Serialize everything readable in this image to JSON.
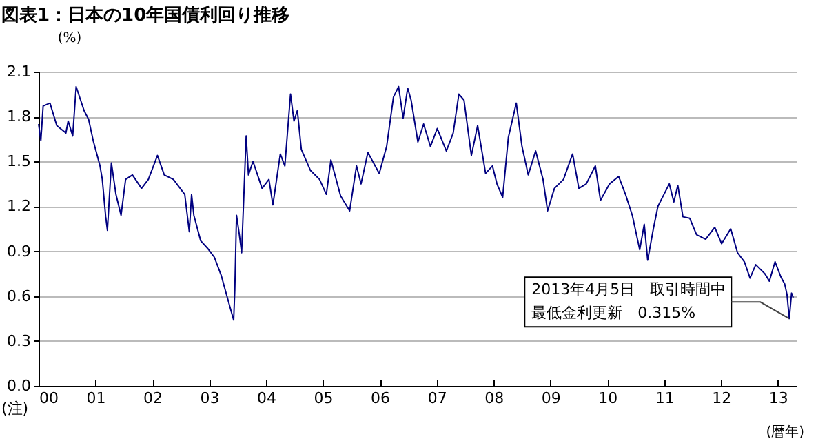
{
  "chart_data": {
    "type": "line",
    "title": "図表1：日本の10年国債利回り推移",
    "ylabel": "(%)",
    "xlabel": "(暦年)",
    "annotations": [
      {
        "text": "2013年4月5日　取引時間中最低金利更新　0.315%",
        "x": 2013.2,
        "y": 0.45
      },
      "(注)"
    ],
    "x": [
      2000.0,
      2000.04,
      2000.08,
      2000.2,
      2000.32,
      2000.48,
      2000.52,
      2000.6,
      2000.66,
      2000.8,
      2000.88,
      2000.96,
      2001.08,
      2001.12,
      2001.18,
      2001.21,
      2001.28,
      2001.36,
      2001.45,
      2001.53,
      2001.65,
      2001.81,
      2001.93,
      2002.09,
      2002.21,
      2002.37,
      2002.57,
      2002.65,
      2002.69,
      2002.73,
      2002.85,
      2002.97,
      2003.09,
      2003.21,
      2003.29,
      2003.37,
      2003.43,
      2003.45,
      2003.48,
      2003.53,
      2003.57,
      2003.65,
      2003.69,
      2003.77,
      2003.93,
      2004.05,
      2004.12,
      2004.25,
      2004.33,
      2004.43,
      2004.49,
      2004.55,
      2004.62,
      2004.78,
      2004.94,
      2005.06,
      2005.14,
      2005.31,
      2005.47,
      2005.59,
      2005.67,
      2005.79,
      2005.99,
      2006.12,
      2006.24,
      2006.33,
      2006.41,
      2006.49,
      2006.55,
      2006.67,
      2006.77,
      2006.89,
      2007.01,
      2007.17,
      2007.29,
      2007.39,
      2007.48,
      2007.61,
      2007.72,
      2007.86,
      2007.98,
      2008.06,
      2008.16,
      2008.26,
      2008.4,
      2008.5,
      2008.61,
      2008.74,
      2008.87,
      2008.95,
      2009.07,
      2009.23,
      2009.39,
      2009.5,
      2009.63,
      2009.79,
      2009.88,
      2010.04,
      2010.2,
      2010.32,
      2010.44,
      2010.57,
      2010.65,
      2010.71,
      2010.81,
      2010.89,
      2010.97,
      2011.09,
      2011.17,
      2011.24,
      2011.33,
      2011.45,
      2011.57,
      2011.73,
      2011.89,
      2012.01,
      2012.17,
      2012.29,
      2012.41,
      2012.51,
      2012.61,
      2012.77,
      2012.85,
      2012.95,
      2013.05,
      2013.12,
      2013.16,
      2013.2,
      2013.24,
      2013.27
    ],
    "series": [
      {
        "color": "#000080",
        "values": [
          1.75,
          1.64,
          1.87,
          1.89,
          1.74,
          1.69,
          1.77,
          1.67,
          2.0,
          1.84,
          1.78,
          1.64,
          1.47,
          1.38,
          1.13,
          1.04,
          1.49,
          1.28,
          1.14,
          1.38,
          1.41,
          1.32,
          1.38,
          1.54,
          1.41,
          1.38,
          1.28,
          1.03,
          1.28,
          1.14,
          0.97,
          0.92,
          0.86,
          0.74,
          0.63,
          0.52,
          0.44,
          0.64,
          1.14,
          1.01,
          0.89,
          1.67,
          1.41,
          1.5,
          1.32,
          1.38,
          1.21,
          1.55,
          1.47,
          1.95,
          1.77,
          1.84,
          1.58,
          1.44,
          1.38,
          1.28,
          1.51,
          1.27,
          1.17,
          1.47,
          1.35,
          1.56,
          1.42,
          1.6,
          1.93,
          2.0,
          1.79,
          1.99,
          1.91,
          1.63,
          1.75,
          1.6,
          1.72,
          1.57,
          1.69,
          1.95,
          1.91,
          1.54,
          1.74,
          1.42,
          1.47,
          1.35,
          1.26,
          1.66,
          1.89,
          1.6,
          1.41,
          1.57,
          1.38,
          1.17,
          1.32,
          1.38,
          1.55,
          1.32,
          1.35,
          1.47,
          1.24,
          1.35,
          1.4,
          1.28,
          1.14,
          0.91,
          1.08,
          0.84,
          1.05,
          1.2,
          1.26,
          1.35,
          1.23,
          1.34,
          1.13,
          1.12,
          1.01,
          0.98,
          1.06,
          0.95,
          1.05,
          0.89,
          0.83,
          0.72,
          0.81,
          0.75,
          0.7,
          0.83,
          0.73,
          0.68,
          0.61,
          0.45,
          0.62,
          0.59
        ]
      }
    ],
    "xlim": [
      2000,
      2013.33
    ],
    "xticks": [
      {
        "value": 2000,
        "label": "00"
      },
      {
        "value": 2001,
        "label": "01"
      },
      {
        "value": 2002,
        "label": "02"
      },
      {
        "value": 2003,
        "label": "03"
      },
      {
        "value": 2004,
        "label": "04"
      },
      {
        "value": 2005,
        "label": "05"
      },
      {
        "value": 2006,
        "label": "06"
      },
      {
        "value": 2007,
        "label": "07"
      },
      {
        "value": 2008,
        "label": "08"
      },
      {
        "value": 2009,
        "label": "09"
      },
      {
        "value": 2010,
        "label": "10"
      },
      {
        "value": 2011,
        "label": "11"
      },
      {
        "value": 2012,
        "label": "12"
      },
      {
        "value": 2013,
        "label": "13"
      }
    ],
    "ylim": [
      0,
      2.1
    ],
    "yticks": [
      {
        "value": 0,
        "label": "0.0"
      },
      0.3,
      0.6,
      0.9,
      1.2,
      1.5,
      1.8,
      2.1
    ],
    "grid": "y"
  }
}
